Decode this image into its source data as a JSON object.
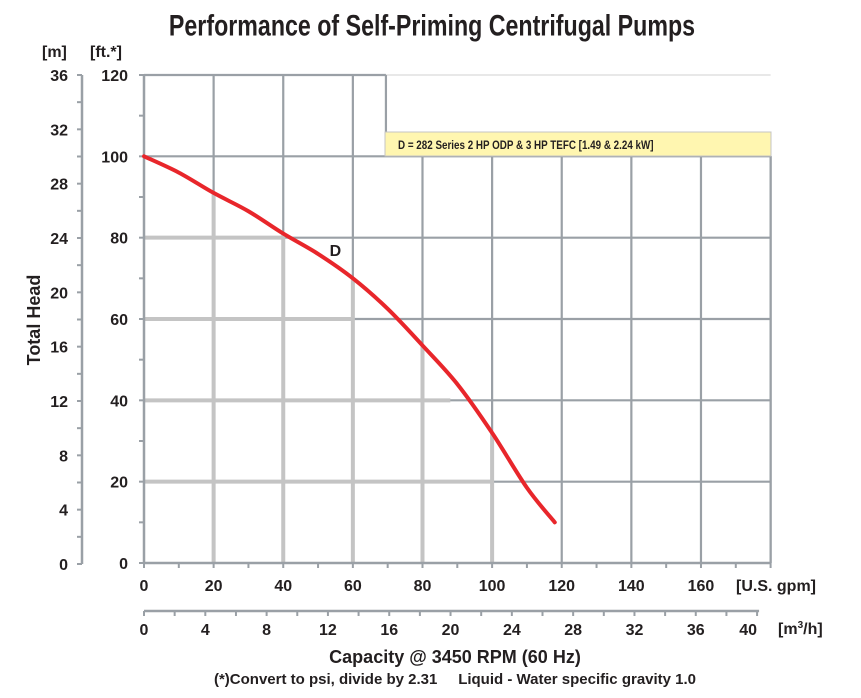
{
  "chart_data": {
    "type": "line",
    "title": "Performance of Self-Priming Centrifugal Pumps",
    "xlabel": "Capacity @ 3450 RPM (60 Hz)",
    "ylabel": "Total Head",
    "footnote": "(*)Convert to psi, divide by 2.31     Liquid - Water specific gravity 1.0",
    "x_unit_primary": "[U.S. gpm]",
    "x_unit_secondary_base": "[m",
    "x_unit_secondary_sup": "3",
    "x_unit_secondary_tail": "/h]",
    "y_unit_primary": "[ft.*]",
    "y_unit_secondary": "[m]",
    "xlim": [
      0,
      180
    ],
    "ylim": [
      0,
      120
    ],
    "x_ticks_gpm": [
      "0",
      "20",
      "40",
      "60",
      "80",
      "100",
      "120",
      "140",
      "160"
    ],
    "x_tick_values_gpm": [
      0,
      20,
      40,
      60,
      80,
      100,
      120,
      140,
      160
    ],
    "x_ticks_m3h": [
      "0",
      "4",
      "8",
      "12",
      "16",
      "20",
      "24",
      "28",
      "32",
      "36",
      "40"
    ],
    "x_tick_values_m3h": [
      0,
      4,
      8,
      12,
      16,
      20,
      24,
      28,
      32,
      36,
      40
    ],
    "y_ticks_ft": [
      "0",
      "20",
      "40",
      "60",
      "80",
      "100",
      "120"
    ],
    "y_tick_values_ft": [
      0,
      20,
      40,
      60,
      80,
      100,
      120
    ],
    "y_ticks_m": [
      "0",
      "4",
      "8",
      "12",
      "16",
      "20",
      "24",
      "28",
      "32",
      "36"
    ],
    "y_tick_values_m": [
      0,
      4,
      8,
      12,
      16,
      20,
      24,
      28,
      32,
      36
    ],
    "grid": true,
    "legend": {
      "position": "top-right",
      "text": "D = 282 Series 2 HP ODP & 3 HP TEFC [1.49 & 2.24 kW]"
    },
    "series": [
      {
        "name": "D",
        "color": "#e8262b",
        "x": [
          0,
          10,
          20,
          30,
          40,
          50,
          60,
          70,
          80,
          90,
          100,
          110,
          118
        ],
        "y": [
          100,
          96,
          91,
          86.5,
          81,
          76,
          70,
          62.5,
          53.5,
          44,
          32,
          18.5,
          10
        ]
      }
    ],
    "colors": {
      "grid_dark": "#9aa0a6",
      "grid_light": "#c4c4c4",
      "legend_bg": "#fff6b0",
      "curve": "#e8262b"
    }
  }
}
